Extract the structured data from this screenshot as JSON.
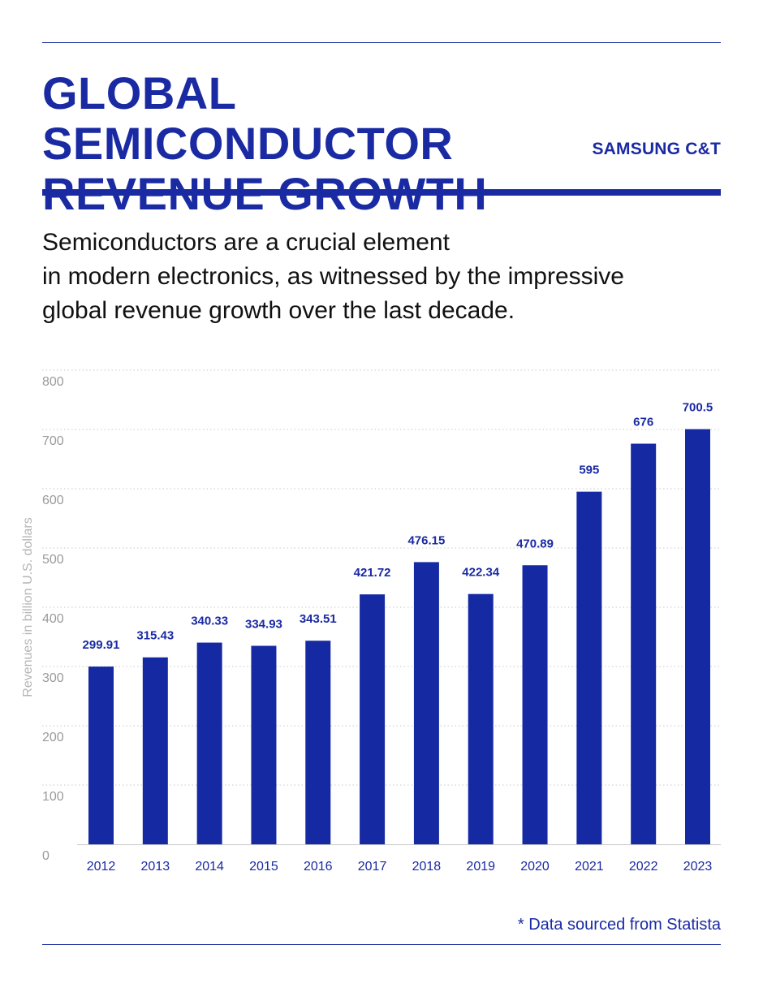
{
  "header": {
    "title": "GLOBAL SEMICONDUCTOR REVENUE GROWTH",
    "brand": "SAMSUNG C&T"
  },
  "intro": {
    "lines": [
      "Semiconductors are a crucial element",
      "in modern electronics, as witnessed by the impressive",
      "global revenue growth over the last decade."
    ]
  },
  "footer": {
    "note": "* Data sourced from Statista"
  },
  "colors": {
    "accent": "#1a2aa3",
    "bar": "#1529a3",
    "tick": "#9a9a9a",
    "grid": "#c8c8c8"
  },
  "chart_data": {
    "type": "bar",
    "title": "",
    "xlabel": "",
    "ylabel": "Revenues in billion U.S. dollars",
    "categories": [
      "2012",
      "2013",
      "2014",
      "2015",
      "2016",
      "2017",
      "2018",
      "2019",
      "2020",
      "2021",
      "2022",
      "2023"
    ],
    "values": [
      299.91,
      315.43,
      340.33,
      334.93,
      343.51,
      421.72,
      476.15,
      422.34,
      470.89,
      595,
      676,
      700.5
    ],
    "value_labels": [
      "299.91",
      "315.43",
      "340.33",
      "334.93",
      "343.51",
      "421.72",
      "476.15",
      "422.34",
      "470.89",
      "595",
      "676",
      "700.5"
    ],
    "ylim": [
      0,
      800
    ],
    "yticks": [
      0,
      100,
      200,
      300,
      400,
      500,
      600,
      700,
      800
    ],
    "grid": true,
    "grid_style": "dotted",
    "legend": "none"
  }
}
